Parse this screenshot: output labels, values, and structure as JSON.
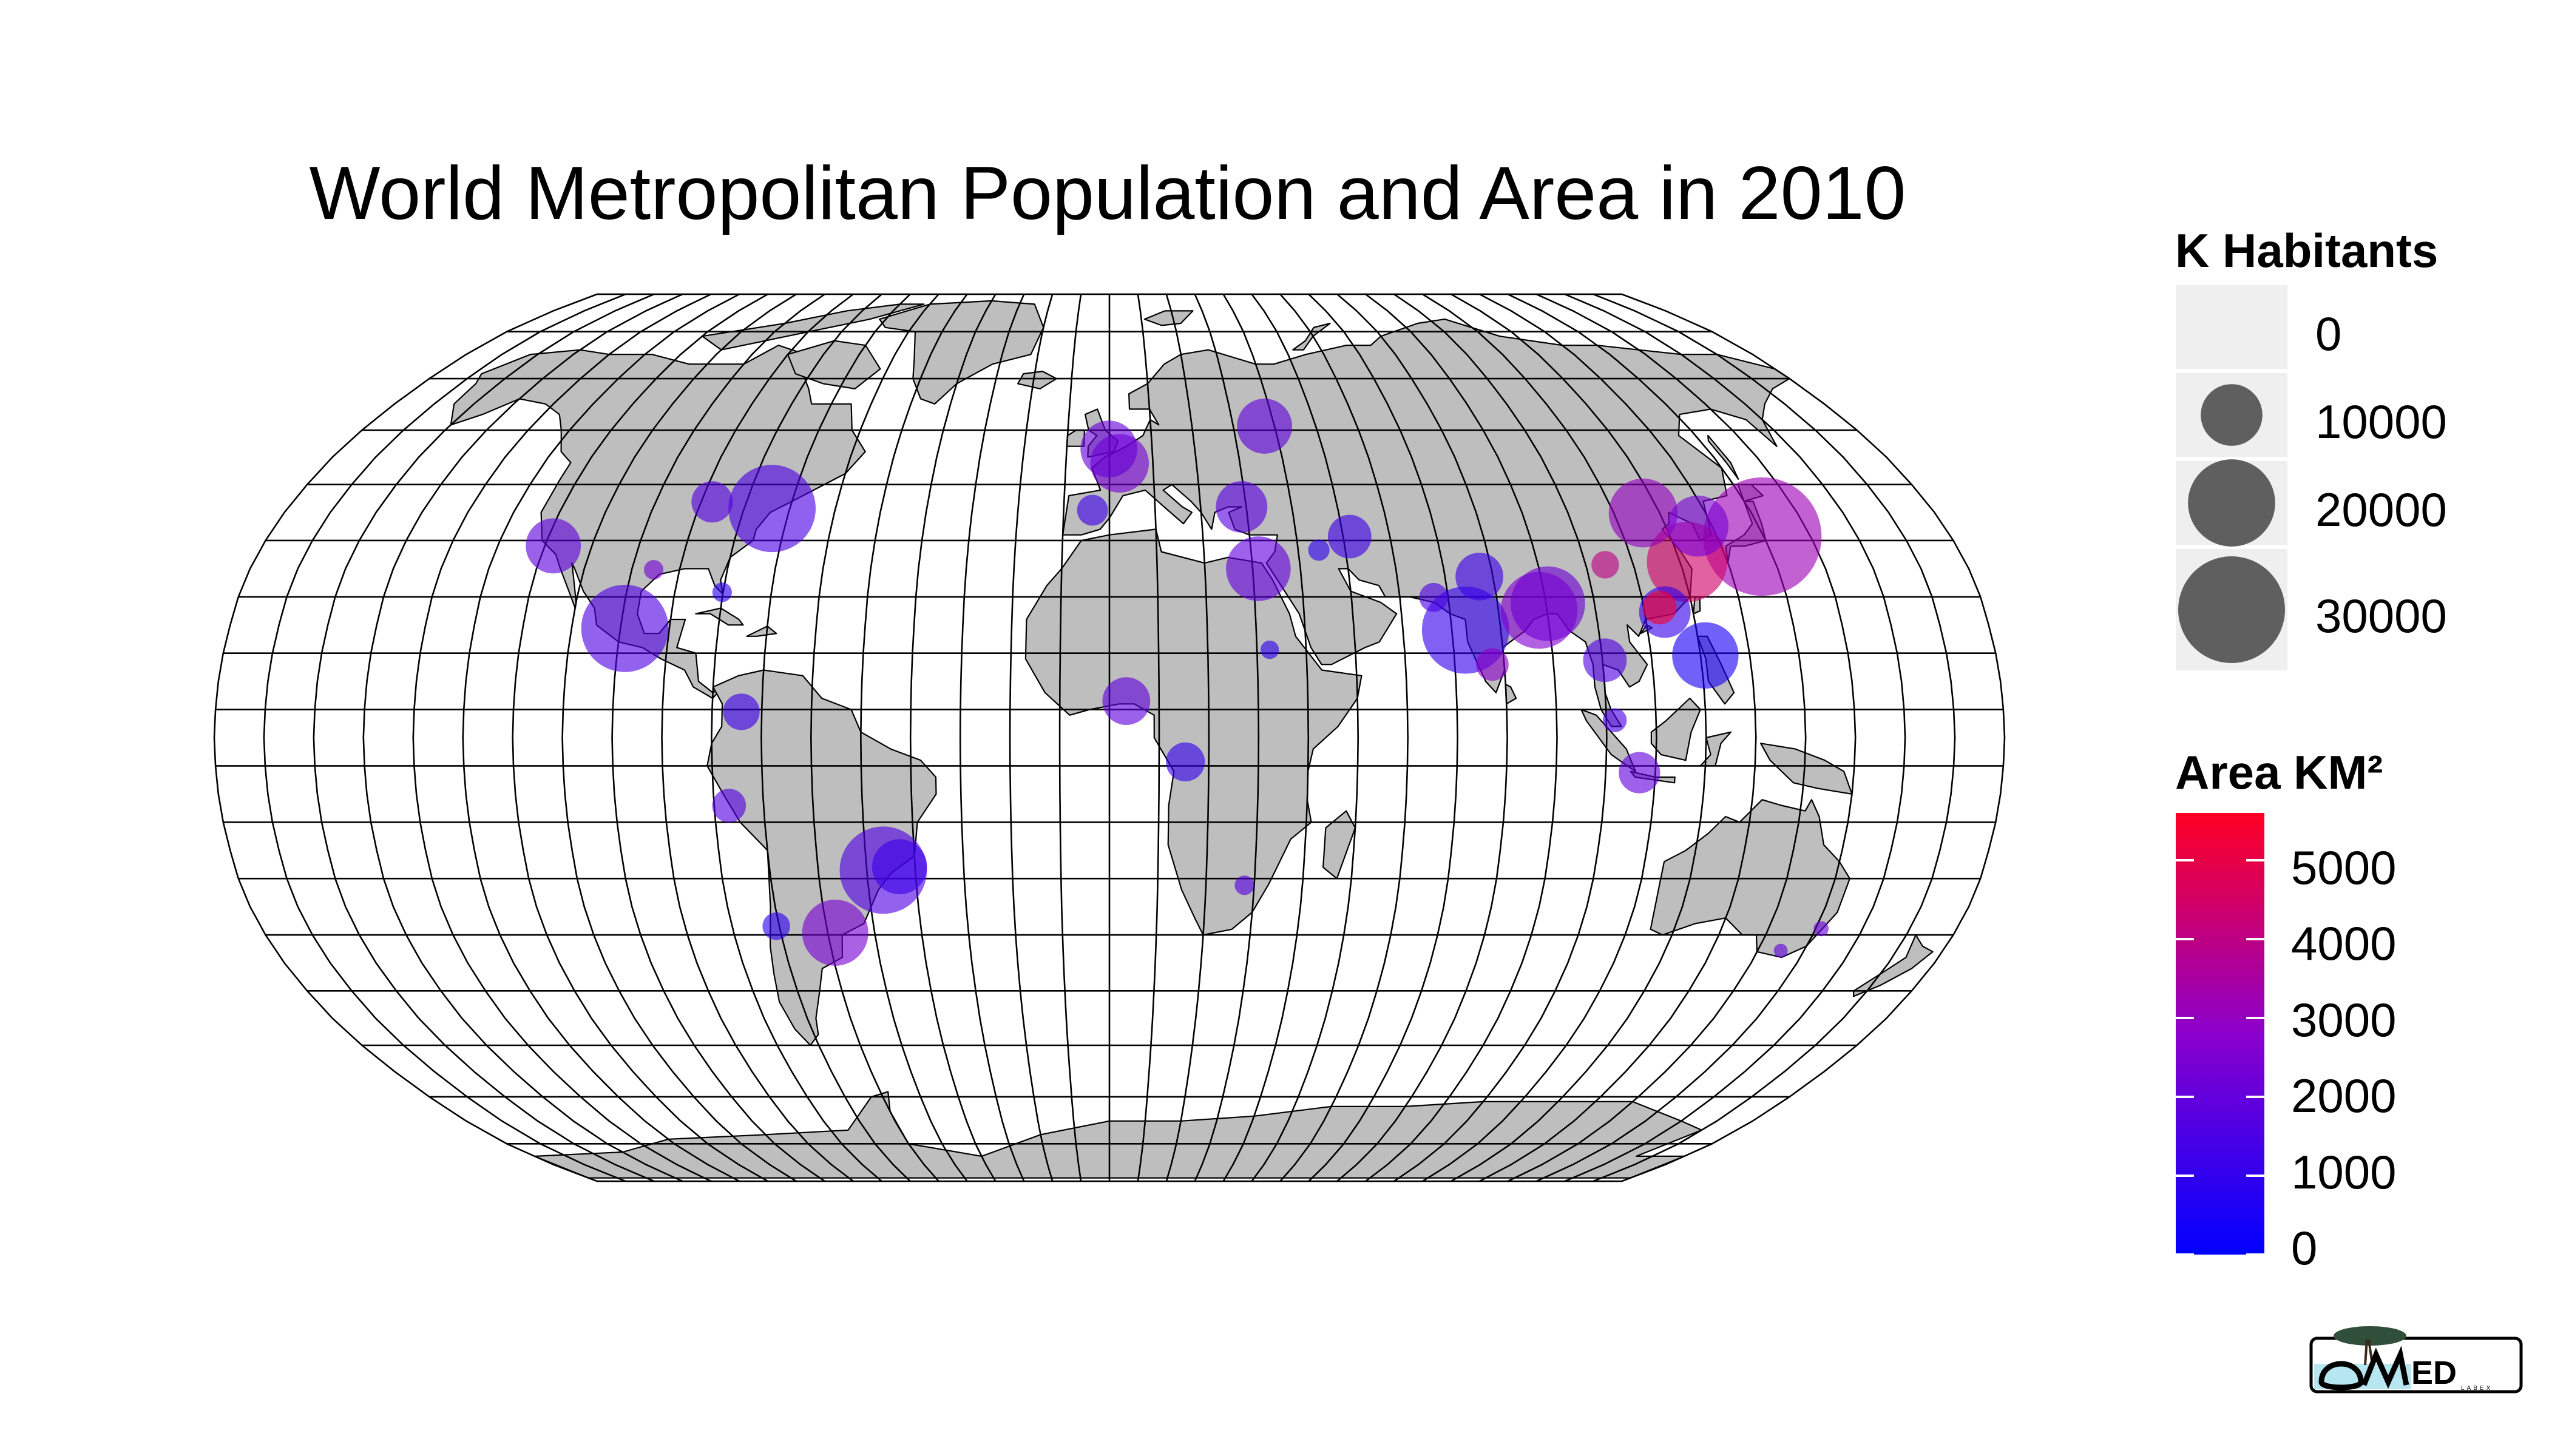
{
  "title": "World Metropolitan Population and Area in 2010",
  "legend": {
    "size_title": "K Habitants",
    "size_items": [
      {
        "label": "0",
        "value": 0
      },
      {
        "label": "10000",
        "value": 10000
      },
      {
        "label": "20000",
        "value": 20000
      },
      {
        "label": "30000",
        "value": 30000
      }
    ],
    "area_title": "Area KM²",
    "area_labels": [
      "5000",
      "4000",
      "3000",
      "2000",
      "1000",
      "0"
    ],
    "area_range": [
      0,
      5600
    ]
  },
  "logo_text": "OMED LABEX",
  "colors": {
    "land": "#bebebe",
    "ocean": "#ffffff",
    "graticule": "#000000",
    "legend_key_bg": "#efefef",
    "size_key_fill": "#5f5f5f",
    "area_low": "#0000ff",
    "area_mid": "#8b00cc",
    "area_high": "#ff0022"
  },
  "chart_data": {
    "type": "scatter",
    "projection": "Robinson",
    "size_variable": "K Habitants",
    "color_variable": "Area KM²",
    "cities": [
      {
        "lon": 139.7,
        "lat": 35.7,
        "pop": 36900,
        "area": 3200
      },
      {
        "lon": 121.5,
        "lat": 31.2,
        "pop": 17000,
        "area": 4500
      },
      {
        "lon": 116.4,
        "lat": 39.9,
        "pop": 12500,
        "area": 3000
      },
      {
        "lon": 126.98,
        "lat": 37.56,
        "pop": 9800,
        "area": 2400
      },
      {
        "lon": 113.3,
        "lat": 23.1,
        "pop": 3000,
        "area": 5400
      },
      {
        "lon": 114.2,
        "lat": 22.3,
        "pop": 7000,
        "area": 1100
      },
      {
        "lon": 104.1,
        "lat": 30.7,
        "pop": 2000,
        "area": 4000
      },
      {
        "lon": 120.98,
        "lat": 14.6,
        "pop": 11600,
        "area": 500
      },
      {
        "lon": 72.8,
        "lat": 19.1,
        "pop": 20000,
        "area": 1000
      },
      {
        "lon": 77.2,
        "lat": 28.6,
        "pop": 6000,
        "area": 1200
      },
      {
        "lon": 88.4,
        "lat": 22.6,
        "pop": 15500,
        "area": 2600
      },
      {
        "lon": 90.4,
        "lat": 23.8,
        "pop": 14600,
        "area": 2200
      },
      {
        "lon": 77.6,
        "lat": 13.0,
        "pop": 2800,
        "area": 2800
      },
      {
        "lon": 100.5,
        "lat": 13.75,
        "pop": 5000,
        "area": 1600
      },
      {
        "lon": 106.8,
        "lat": -6.2,
        "pop": 4500,
        "area": 2000
      },
      {
        "lon": 67.0,
        "lat": 24.9,
        "pop": 2200,
        "area": 1500
      },
      {
        "lon": 101.7,
        "lat": 3.1,
        "pop": 1500,
        "area": 1500
      },
      {
        "lon": 51.4,
        "lat": 35.7,
        "pop": 5000,
        "area": 1200
      },
      {
        "lon": 44.4,
        "lat": 33.3,
        "pop": 1200,
        "area": 900
      },
      {
        "lon": 31.2,
        "lat": 30.0,
        "pop": 11000,
        "area": 2000
      },
      {
        "lon": 29.0,
        "lat": 41.0,
        "pop": 7000,
        "area": 1800
      },
      {
        "lon": 37.6,
        "lat": 55.75,
        "pop": 8000,
        "area": 1900
      },
      {
        "lon": 2.35,
        "lat": 48.86,
        "pop": 9000,
        "area": 2400
      },
      {
        "lon": -0.13,
        "lat": 51.5,
        "pop": 8500,
        "area": 2100
      },
      {
        "lon": -3.7,
        "lat": 40.4,
        "pop": 2500,
        "area": 1200
      },
      {
        "lon": 3.4,
        "lat": 6.5,
        "pop": 6000,
        "area": 1900
      },
      {
        "lon": 15.3,
        "lat": -4.3,
        "pop": 4000,
        "area": 1000
      },
      {
        "lon": 28.0,
        "lat": -26.2,
        "pop": 1000,
        "area": 1700
      },
      {
        "lon": 32.6,
        "lat": 15.6,
        "pop": 900,
        "area": 900
      },
      {
        "lon": -73.9,
        "lat": 40.7,
        "pop": 20000,
        "area": 1500
      },
      {
        "lon": -118.2,
        "lat": 34.05,
        "pop": 8000,
        "area": 1900
      },
      {
        "lon": -99.1,
        "lat": 19.4,
        "pop": 20000,
        "area": 1600
      },
      {
        "lon": -87.6,
        "lat": 41.9,
        "pop": 4500,
        "area": 1700
      },
      {
        "lon": -95.4,
        "lat": 29.8,
        "pop": 1000,
        "area": 2300
      },
      {
        "lon": -80.2,
        "lat": 25.8,
        "pop": 1000,
        "area": 900
      },
      {
        "lon": -46.6,
        "lat": -23.5,
        "pop": 20000,
        "area": 1600
      },
      {
        "lon": -43.2,
        "lat": -22.9,
        "pop": 8000,
        "area": 1200
      },
      {
        "lon": -58.4,
        "lat": -34.6,
        "pop": 11500,
        "area": 2400
      },
      {
        "lon": -70.65,
        "lat": -33.45,
        "pop": 2000,
        "area": 900
      },
      {
        "lon": -77.0,
        "lat": -12.05,
        "pop": 3000,
        "area": 1700
      },
      {
        "lon": -74.1,
        "lat": 4.6,
        "pop": 3500,
        "area": 1200
      },
      {
        "lon": 151.2,
        "lat": -33.9,
        "pop": 600,
        "area": 2100
      },
      {
        "lon": 145.0,
        "lat": -37.8,
        "pop": 500,
        "area": 2000
      }
    ]
  }
}
